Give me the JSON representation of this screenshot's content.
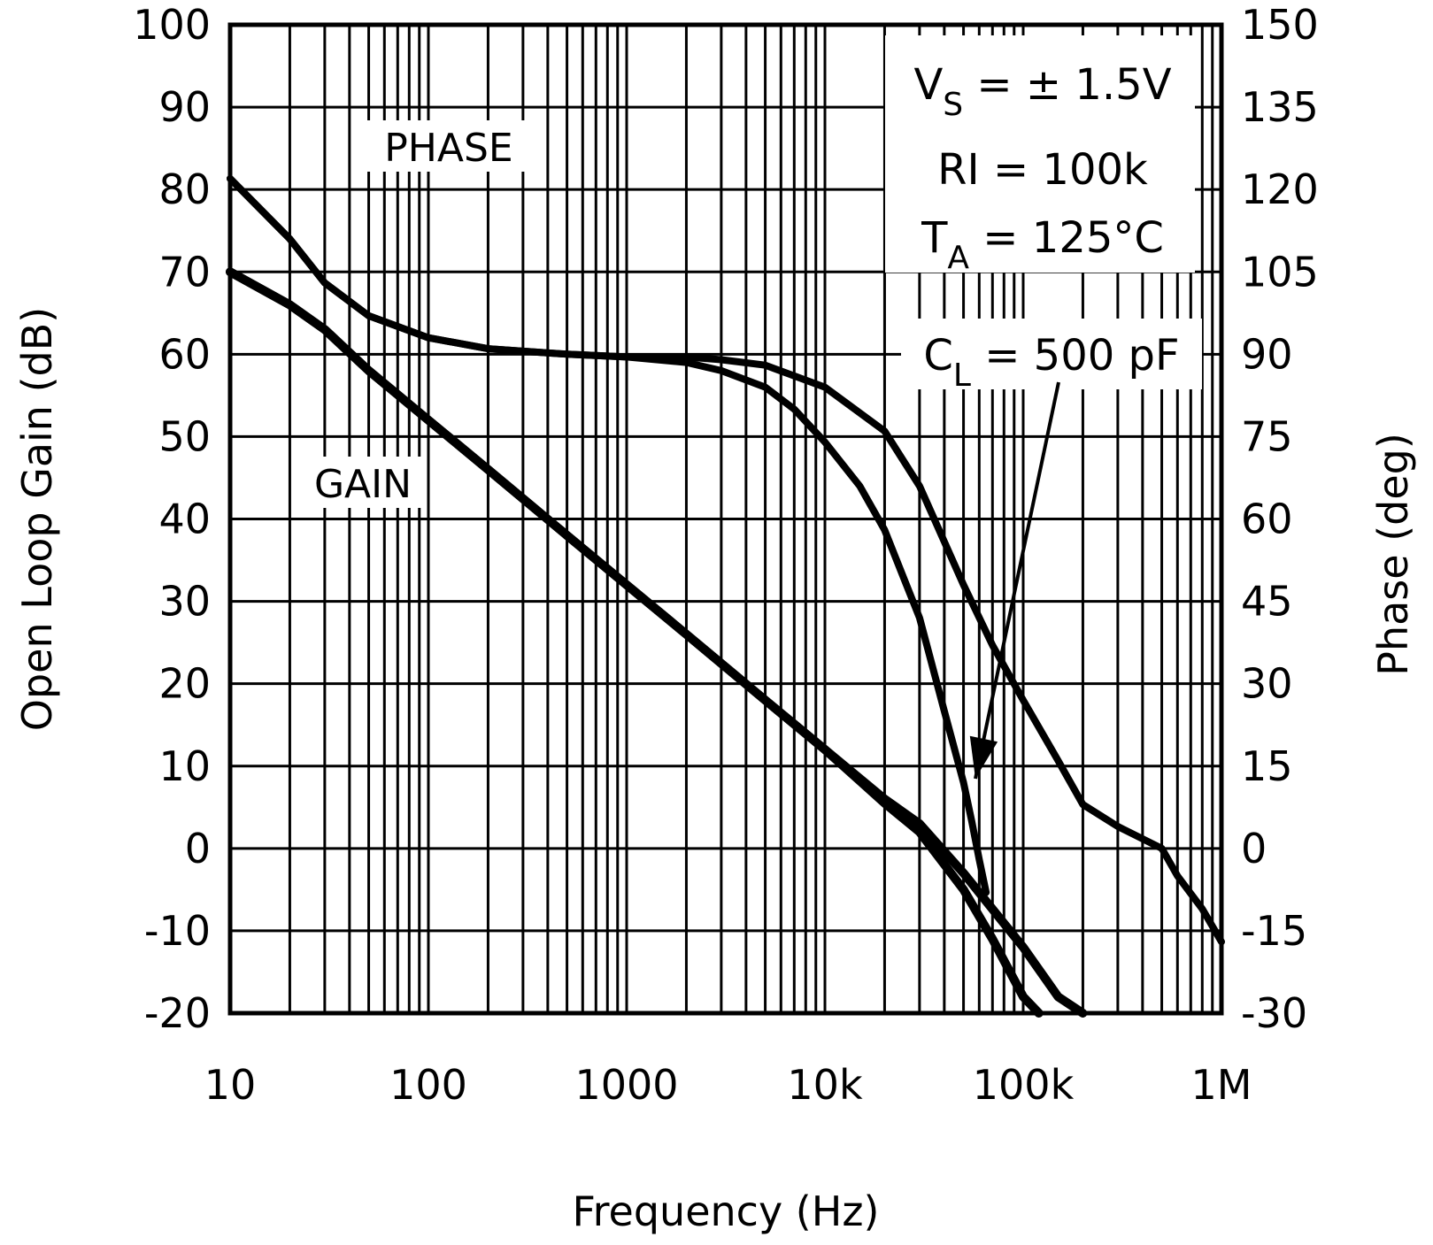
{
  "chart_data": {
    "type": "line",
    "xlabel": "Frequency (Hz)",
    "ylabel_left": "Open Loop Gain (dB)",
    "ylabel_right": "Phase (deg)",
    "x_scale": "log",
    "xlim": [
      10,
      1000000
    ],
    "ylim_left": [
      -20,
      100
    ],
    "ylim_right": [
      -30,
      150
    ],
    "grid": true,
    "x_ticks": [
      {
        "value": 10,
        "label": "10"
      },
      {
        "value": 100,
        "label": "100"
      },
      {
        "value": 1000,
        "label": "1000"
      },
      {
        "value": 10000,
        "label": "10k"
      },
      {
        "value": 100000,
        "label": "100k"
      },
      {
        "value": 1000000,
        "label": "1M"
      }
    ],
    "y_ticks_left": [
      "100",
      "90",
      "80",
      "70",
      "60",
      "50",
      "40",
      "30",
      "20",
      "10",
      "0",
      "-10",
      "-20"
    ],
    "y_ticks_right": [
      "150",
      "135",
      "120",
      "105",
      "90",
      "75",
      "60",
      "45",
      "30",
      "15",
      "0",
      "-15",
      "-30"
    ],
    "curve_labels": {
      "phase": "PHASE",
      "gain": "GAIN"
    },
    "conditions": {
      "vs_main": "V",
      "vs_sub": "S",
      "vs_value": " = ± 1.5V",
      "ri": "RI = 100k",
      "ta_main": "T",
      "ta_sub": "A",
      "ta_value": " = 125°C",
      "cl_main": "C",
      "cl_sub": "L",
      "cl_value": " = 500 pF"
    },
    "series": [
      {
        "curve": "phase-no-load",
        "axis": "right",
        "x": [
          10,
          20,
          30,
          50,
          100,
          200,
          500,
          1000,
          2000,
          3000,
          5000,
          10000,
          20000,
          30000,
          50000,
          70000,
          100000,
          150000,
          200000,
          300000,
          500000,
          600000,
          800000,
          1000000
        ],
        "y": [
          122,
          111,
          103,
          97,
          93,
          91,
          90,
          89.5,
          89.5,
          89,
          88,
          84,
          76,
          66,
          48,
          37,
          27,
          16,
          8,
          4,
          0,
          -5,
          -11,
          -17
        ]
      },
      {
        "curve": "phase-500pF",
        "axis": "right",
        "x": [
          10,
          20,
          30,
          50,
          100,
          200,
          500,
          1000,
          2000,
          3000,
          5000,
          7000,
          10000,
          15000,
          20000,
          30000,
          40000,
          50000,
          55000,
          60000,
          65000
        ],
        "y": [
          122,
          111,
          103,
          97,
          93,
          91,
          90,
          89.5,
          88.5,
          87,
          84,
          80,
          74,
          66,
          58,
          42,
          25,
          12,
          5,
          -2,
          -8
        ]
      },
      {
        "curve": "gain-no-load",
        "axis": "left",
        "x": [
          10,
          20,
          30,
          50,
          100,
          200,
          500,
          1000,
          2000,
          5000,
          10000,
          20000,
          30000,
          50000,
          100000,
          150000,
          200000
        ],
        "y": [
          70,
          66,
          63,
          58,
          52,
          46,
          38,
          32,
          26,
          18,
          12,
          6,
          3,
          -3,
          -12,
          -18,
          -20
        ]
      },
      {
        "curve": "gain-500pF",
        "axis": "left",
        "x": [
          10,
          20,
          30,
          50,
          100,
          200,
          500,
          1000,
          2000,
          5000,
          10000,
          20000,
          30000,
          50000,
          70000,
          100000,
          120000
        ],
        "y": [
          70,
          66,
          63,
          58,
          52,
          46,
          38,
          32,
          26,
          18,
          12,
          5.5,
          2,
          -5,
          -11,
          -18,
          -20
        ]
      }
    ]
  }
}
